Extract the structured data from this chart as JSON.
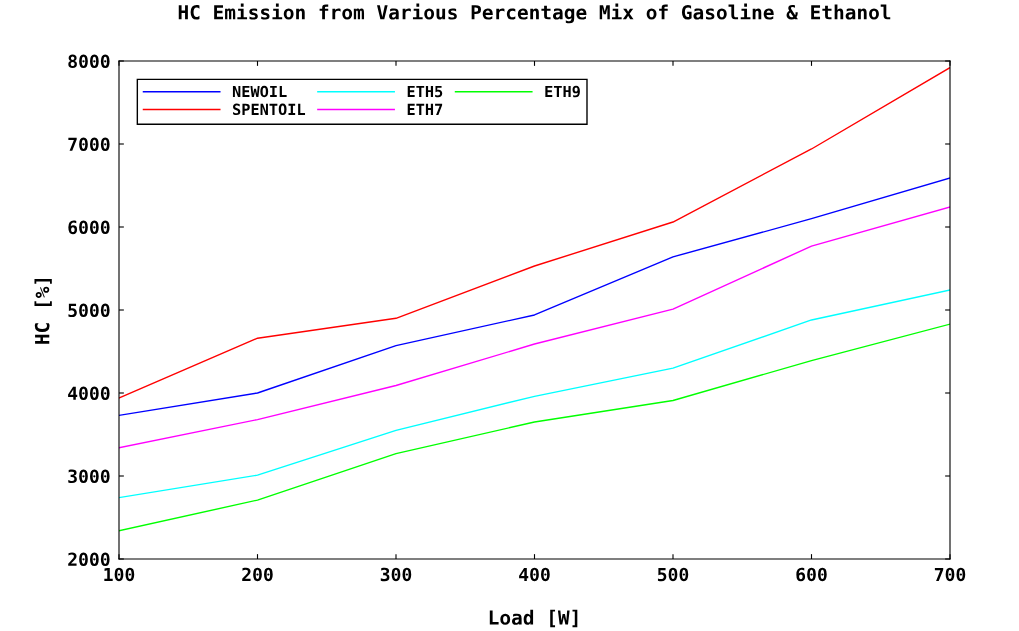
{
  "chart_data": {
    "type": "line",
    "title": "HC Emission from Various Percentage Mix of Gasoline & Ethanol",
    "xlabel": "Load [W]",
    "ylabel": "HC [%]",
    "x": [
      100,
      200,
      300,
      400,
      500,
      600,
      700
    ],
    "series": [
      {
        "name": "NEWOIL",
        "color": "#0000ff",
        "values": [
          3730,
          4000,
          4570,
          4940,
          5640,
          6100,
          6590
        ]
      },
      {
        "name": "SPENTOIL",
        "color": "#ff0000",
        "values": [
          3940,
          4660,
          4900,
          5530,
          6060,
          6940,
          7920
        ]
      },
      {
        "name": "ETH5",
        "color": "#00ffff",
        "values": [
          2740,
          3010,
          3550,
          3960,
          4300,
          4880,
          5240
        ]
      },
      {
        "name": "ETH7",
        "color": "#ff00ff",
        "values": [
          3340,
          3680,
          4090,
          4590,
          5010,
          5770,
          6240
        ]
      },
      {
        "name": "ETH9",
        "color": "#00ff00",
        "values": [
          2340,
          2710,
          3270,
          3650,
          3910,
          4390,
          4830
        ]
      }
    ],
    "xlim": [
      100,
      700
    ],
    "xticks": [
      100,
      200,
      300,
      400,
      500,
      600,
      700
    ],
    "ylim": [
      2000,
      8000
    ],
    "yticks": [
      2000,
      3000,
      4000,
      5000,
      6000,
      7000,
      8000
    ],
    "grid": false,
    "legend": "top left",
    "marker": "none",
    "line_style": "solid"
  }
}
